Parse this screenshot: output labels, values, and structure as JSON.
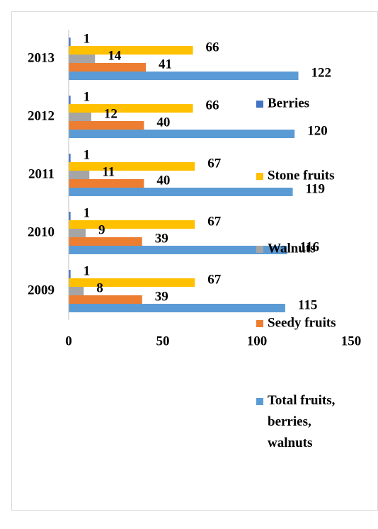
{
  "chart_data": {
    "type": "bar",
    "orientation": "horizontal",
    "categories": [
      "2009",
      "2010",
      "2011",
      "2012",
      "2013"
    ],
    "series": [
      {
        "name": "Berries",
        "color": "#4472c4",
        "values": [
          1,
          1,
          1,
          1,
          1
        ]
      },
      {
        "name": "Stone fruits",
        "color": "#ffc000",
        "values": [
          67,
          67,
          67,
          66,
          66
        ]
      },
      {
        "name": "Walnuts",
        "color": "#a5a5a5",
        "values": [
          8,
          9,
          11,
          12,
          14
        ]
      },
      {
        "name": "Seedy fruits",
        "color": "#ed7d31",
        "values": [
          39,
          39,
          40,
          40,
          41
        ]
      },
      {
        "name": "Total fruits, berries, walnuts",
        "color": "#5b9bd5",
        "values": [
          115,
          116,
          119,
          120,
          122
        ]
      }
    ],
    "xlim": [
      0,
      150
    ],
    "xticks": [
      0,
      50,
      100,
      150
    ],
    "grid": false,
    "legend": "right"
  }
}
